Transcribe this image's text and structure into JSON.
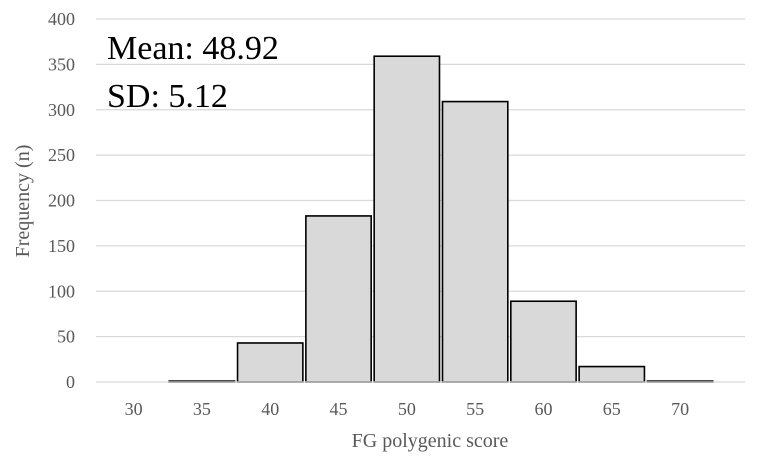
{
  "chart_data": {
    "type": "bar",
    "title": "",
    "xlabel": "FG polygenic score",
    "ylabel": "Frequency (n)",
    "categories": [
      "30",
      "35",
      "40",
      "45",
      "50",
      "55",
      "60",
      "65",
      "70"
    ],
    "values": [
      0,
      1,
      43,
      183,
      359,
      309,
      89,
      17,
      1
    ],
    "ylim": [
      0,
      400
    ],
    "yticks": [
      "0",
      "50",
      "100",
      "150",
      "200",
      "250",
      "300",
      "350",
      "400"
    ],
    "grid": true,
    "legend": "none",
    "annotations": [
      "Mean: 48.92",
      "SD: 5.12"
    ],
    "colors": {
      "bar_fill": "#d9d9d9",
      "bar_stroke": "#000000",
      "grid": "#d9d9d9",
      "text": "#595959"
    }
  }
}
